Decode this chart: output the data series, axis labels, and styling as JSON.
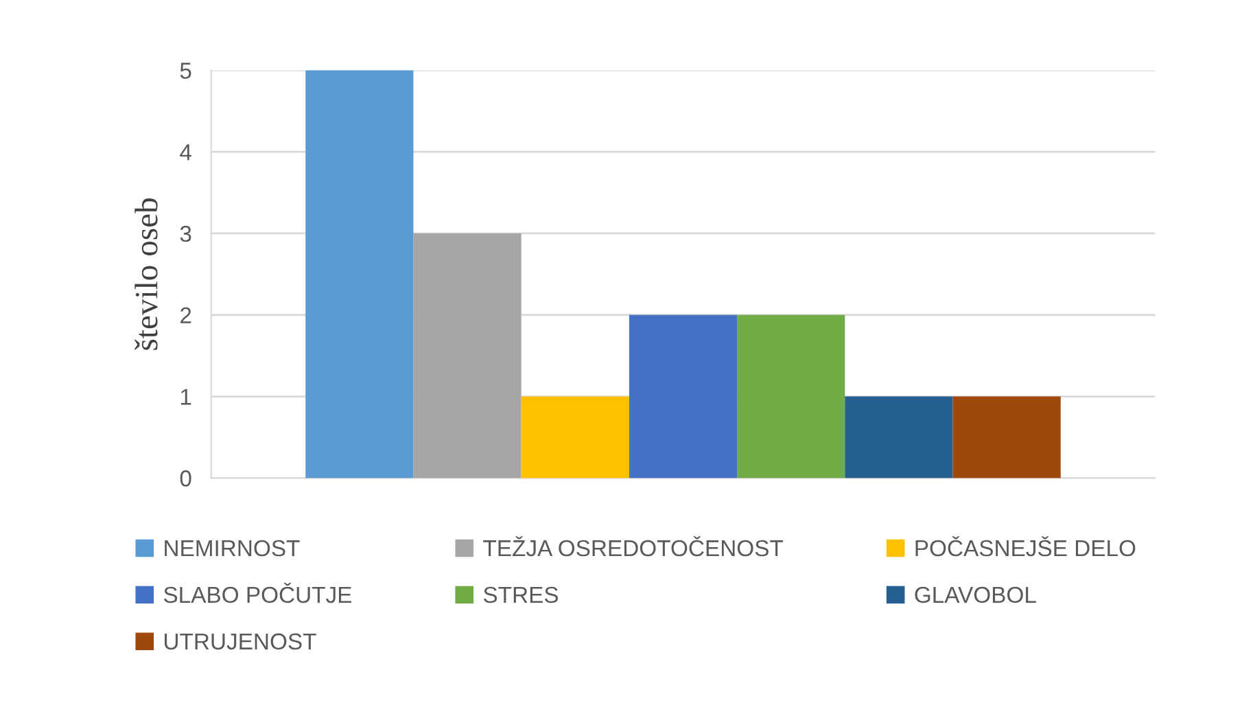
{
  "chart_data": {
    "type": "bar",
    "ylabel": "število oseb",
    "categories": [
      null
    ],
    "series": [
      {
        "name": "NEMIRNOST",
        "color": "#5b9bd5",
        "values": [
          5
        ]
      },
      {
        "name": "TEŽJA OSREDOTOČENOST",
        "color": "#a5a5a5",
        "values": [
          3
        ]
      },
      {
        "name": "POČASNEJŠE DELO",
        "color": "#ffc000",
        "values": [
          1
        ]
      },
      {
        "name": "SLABO POČUTJE",
        "color": "#4472c4",
        "values": [
          2
        ]
      },
      {
        "name": "STRES",
        "color": "#70ad47",
        "values": [
          2
        ]
      },
      {
        "name": "GLAVOBOL",
        "color": "#255e91",
        "values": [
          1
        ]
      },
      {
        "name": "UTRUJENOST",
        "color": "#9e480e",
        "values": [
          1
        ]
      }
    ],
    "ylim": [
      0,
      5
    ],
    "yticks": [
      0,
      1,
      2,
      3,
      4,
      5
    ],
    "grid": "y",
    "legend": "bottom",
    "tick_labels": "y"
  }
}
